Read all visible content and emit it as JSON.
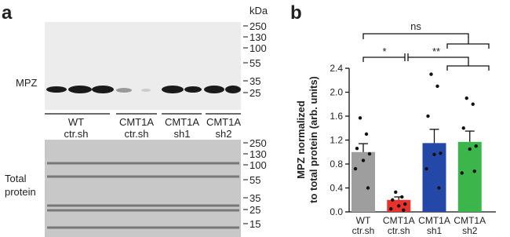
{
  "panel_a": {
    "label": "a",
    "unit": "kDa",
    "blot_label": "MPZ",
    "total_label": [
      "Total",
      "protein"
    ],
    "top_markers": [
      250,
      130,
      100,
      55,
      35,
      25
    ],
    "bottom_markers": [
      250,
      130,
      100,
      55,
      35,
      25,
      15
    ],
    "groups": [
      [
        "WT",
        "ctr.sh"
      ],
      [
        "CMT1A",
        "ctr.sh"
      ],
      [
        "CMT1A",
        "sh1"
      ],
      [
        "CMT1A",
        "sh2"
      ]
    ]
  },
  "chart_data": {
    "type": "bar",
    "panel_label": "b",
    "ylabel": [
      "MPZ normalized",
      "to total protein (arb. units)"
    ],
    "categories": [
      [
        "WT",
        "ctr.sh"
      ],
      [
        "CMT1A",
        "ctr.sh"
      ],
      [
        "CMT1A",
        "sh1"
      ],
      [
        "CMT1A",
        "sh2"
      ]
    ],
    "values": [
      1.0,
      0.2,
      1.15,
      1.17
    ],
    "errors": [
      0.14,
      0.05,
      0.23,
      0.18
    ],
    "colors": [
      "#9e9e9e",
      "#e8322c",
      "#2348a8",
      "#3cb54a"
    ],
    "points": [
      [
        1.57,
        1.3,
        1.06,
        0.97,
        0.86,
        0.72,
        0.4
      ],
      [
        0.33,
        0.25,
        0.2,
        0.13,
        0.1,
        0.05,
        0.03
      ],
      [
        2.3,
        2.1,
        1.6,
        0.98,
        0.96,
        0.72,
        0.4
      ],
      [
        1.9,
        1.8,
        1.4,
        1.1,
        1.05,
        0.65,
        0.68
      ]
    ],
    "ylim": [
      0,
      2.4
    ],
    "yticks": [
      {
        "value": 0,
        "label": "0.0"
      },
      0.4,
      0.8,
      1.2,
      1.6,
      {
        "value": 2,
        "label": "2.0"
      },
      2.4
    ],
    "annotations": [
      "ns",
      "*",
      "**"
    ]
  }
}
